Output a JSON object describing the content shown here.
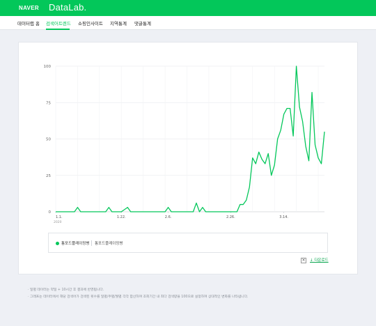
{
  "brand": {
    "naver": "NAVER",
    "datalab": "DataLab."
  },
  "nav": [
    "데이터랩 홈",
    "검색어트렌드",
    "쇼핑인사이트",
    "지역통계",
    "댓글통계"
  ],
  "nav_active": 1,
  "accent_color": "#03c75a",
  "legend": {
    "label": "통포드플레이밍병",
    "sub": "통포드플레이밍병"
  },
  "close_icon": "×",
  "download_label": "↓ 다운로드",
  "notes": [
    "· 일별 데이터는 약일 + 10시간 후 결과에 반영됩니다.",
    "· 그래프는 데이터에서 해당 검색어가 검색된 횟수를 일별/주별/월별 각각 합산하여 조회기간 내 최다 검색량을 100으로 설정하여 상대적인 변화를 나타냅니다."
  ],
  "chart_data": {
    "type": "line",
    "series": [
      {
        "color": "#03c75a",
        "points": [
          [
            "2020-01-01",
            0
          ],
          [
            "2020-01-07",
            0
          ],
          [
            "2020-01-08",
            3
          ],
          [
            "2020-01-09",
            0
          ],
          [
            "2020-01-17",
            0
          ],
          [
            "2020-01-18",
            3
          ],
          [
            "2020-01-19",
            0
          ],
          [
            "2020-01-22",
            0
          ],
          [
            "2020-01-24",
            3
          ],
          [
            "2020-01-25",
            0
          ],
          [
            "2020-02-05",
            0
          ],
          [
            "2020-02-06",
            3
          ],
          [
            "2020-02-07",
            0
          ],
          [
            "2020-02-14",
            0
          ],
          [
            "2020-02-15",
            6
          ],
          [
            "2020-02-16",
            0
          ],
          [
            "2020-02-17",
            3
          ],
          [
            "2020-02-18",
            0
          ],
          [
            "2020-02-28",
            0
          ],
          [
            "2020-02-29",
            5
          ],
          [
            "2020-03-01",
            5
          ],
          [
            "2020-03-02",
            8
          ],
          [
            "2020-03-03",
            17
          ],
          [
            "2020-03-04",
            37
          ],
          [
            "2020-03-05",
            33
          ],
          [
            "2020-03-06",
            41
          ],
          [
            "2020-03-07",
            36
          ],
          [
            "2020-03-08",
            33
          ],
          [
            "2020-03-09",
            40
          ],
          [
            "2020-03-10",
            25
          ],
          [
            "2020-03-11",
            32
          ],
          [
            "2020-03-12",
            50
          ],
          [
            "2020-03-13",
            56
          ],
          [
            "2020-03-14",
            67
          ],
          [
            "2020-03-15",
            71
          ],
          [
            "2020-03-16",
            71
          ],
          [
            "2020-03-17",
            52
          ],
          [
            "2020-03-18",
            100
          ],
          [
            "2020-03-19",
            72
          ],
          [
            "2020-03-20",
            62
          ],
          [
            "2020-03-21",
            45
          ],
          [
            "2020-03-22",
            35
          ],
          [
            "2020-03-23",
            82
          ],
          [
            "2020-03-24",
            46
          ],
          [
            "2020-03-25",
            37
          ],
          [
            "2020-03-26",
            33
          ],
          [
            "2020-03-27",
            55
          ]
        ]
      }
    ],
    "x_ticks": [
      {
        "date": "2020-01-01",
        "label": "1.1.",
        "sublabel": "2020"
      },
      {
        "date": "2020-01-22",
        "label": "1.22."
      },
      {
        "date": "2020-02-06",
        "label": "2.6."
      },
      {
        "date": "2020-02-26",
        "label": "2.26."
      },
      {
        "date": "2020-03-14",
        "label": "3.14."
      }
    ],
    "y_ticks": [
      "0",
      "25",
      "50",
      "75",
      "100"
    ],
    "ylim": [
      0,
      100
    ],
    "xlim": [
      "2020-01-01",
      "2020-03-27"
    ],
    "grid": true
  }
}
